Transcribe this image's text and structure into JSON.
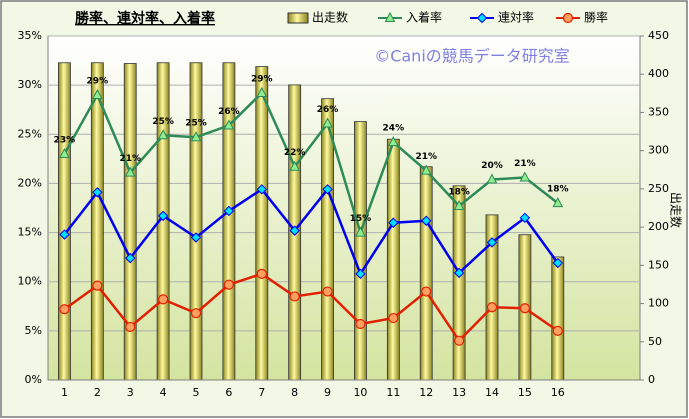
{
  "chart_data": {
    "type": "combo",
    "title": "勝率、連対率、入着率",
    "annotation": "©Caniの競馬データ研究室",
    "y2_label": "出走数",
    "categories": [
      "1",
      "2",
      "3",
      "4",
      "5",
      "6",
      "7",
      "8",
      "9",
      "10",
      "11",
      "12",
      "13",
      "14",
      "15",
      "16",
      null,
      null
    ],
    "ylim": [
      0,
      35
    ],
    "yticks": [
      {
        "value": 0,
        "label": "0%"
      },
      {
        "value": 5,
        "label": "5%"
      },
      {
        "value": 10,
        "label": "10%"
      },
      {
        "value": 15,
        "label": "15%"
      },
      {
        "value": 20,
        "label": "20%"
      },
      {
        "value": 25,
        "label": "25%"
      },
      {
        "value": 30,
        "label": "30%"
      },
      {
        "value": 35,
        "label": "35%"
      }
    ],
    "y2lim": [
      0,
      450
    ],
    "y2ticks": [
      0,
      50,
      100,
      150,
      200,
      250,
      300,
      350,
      400,
      450
    ],
    "grid": true,
    "series": [
      {
        "name": "出走数",
        "type": "bar",
        "axis": "y2",
        "color": "#e8e070",
        "values": [
          415,
          415,
          414,
          415,
          415,
          415,
          410,
          386,
          368,
          338,
          315,
          279,
          254,
          216,
          190,
          161,
          null,
          null
        ]
      },
      {
        "name": "入着率",
        "type": "line",
        "marker": "triangle",
        "color": "#2e8b57",
        "values": [
          23.0,
          29.0,
          21.1,
          24.9,
          24.7,
          25.9,
          29.2,
          21.7,
          26.1,
          15.0,
          24.2,
          21.3,
          17.7,
          20.4,
          20.6,
          18.0,
          null,
          null
        ],
        "value_labels": [
          "23%",
          "29%",
          "21%",
          "25%",
          "25%",
          "26%",
          "29%",
          "22%",
          "26%",
          "15%",
          "24%",
          "21%",
          "18%",
          "20%",
          "21%",
          "18%",
          null,
          null
        ]
      },
      {
        "name": "連対率",
        "type": "line",
        "marker": "diamond",
        "color": "#0000ee",
        "values": [
          14.8,
          19.1,
          12.4,
          16.7,
          14.5,
          17.2,
          19.4,
          15.2,
          19.4,
          10.8,
          16.0,
          16.2,
          10.9,
          14.0,
          16.5,
          11.9,
          null,
          null
        ]
      },
      {
        "name": "勝率",
        "type": "line",
        "marker": "circle",
        "color": "#e02000",
        "values": [
          7.2,
          9.6,
          5.4,
          8.2,
          6.8,
          9.7,
          10.8,
          8.5,
          9.0,
          5.7,
          6.3,
          9.0,
          4.0,
          7.4,
          7.3,
          5.0,
          null,
          null
        ]
      }
    ]
  }
}
